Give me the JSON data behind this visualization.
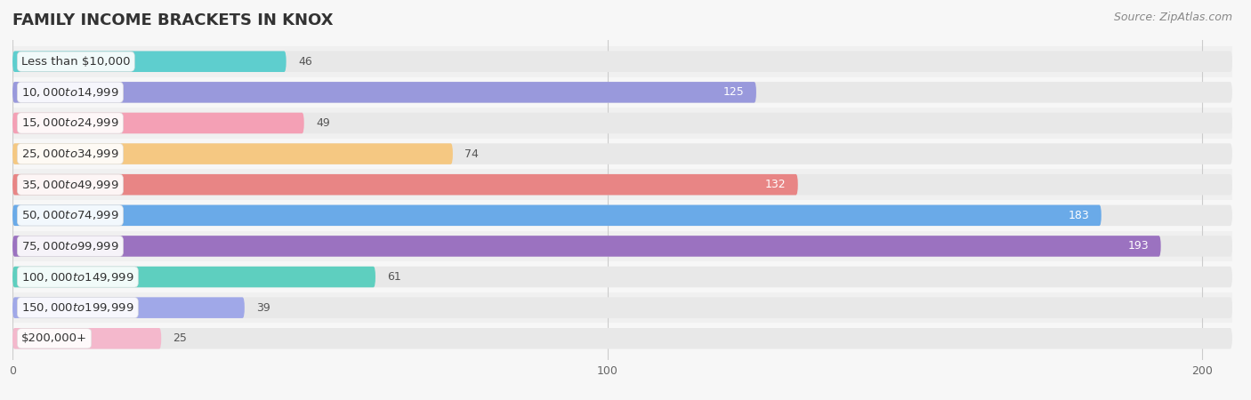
{
  "title": "FAMILY INCOME BRACKETS IN KNOX",
  "source": "Source: ZipAtlas.com",
  "categories": [
    "Less than $10,000",
    "$10,000 to $14,999",
    "$15,000 to $24,999",
    "$25,000 to $34,999",
    "$35,000 to $49,999",
    "$50,000 to $74,999",
    "$75,000 to $99,999",
    "$100,000 to $149,999",
    "$150,000 to $199,999",
    "$200,000+"
  ],
  "values": [
    46,
    125,
    49,
    74,
    132,
    183,
    193,
    61,
    39,
    25
  ],
  "bar_colors": [
    "#5ECECE",
    "#9999DC",
    "#F4A0B5",
    "#F5C882",
    "#E88585",
    "#6AAAE8",
    "#9B72C0",
    "#5ECFBF",
    "#A0A8E8",
    "#F4B8CC"
  ],
  "xlim": [
    0,
    205
  ],
  "xticks": [
    0,
    100,
    200
  ],
  "background_color": "#f7f7f7",
  "bar_bg_color": "#e8e8e8",
  "row_bg_colors": [
    "#f0f0f0",
    "#f7f7f7"
  ],
  "title_fontsize": 13,
  "source_fontsize": 9,
  "label_fontsize": 9.5,
  "value_fontsize": 9
}
